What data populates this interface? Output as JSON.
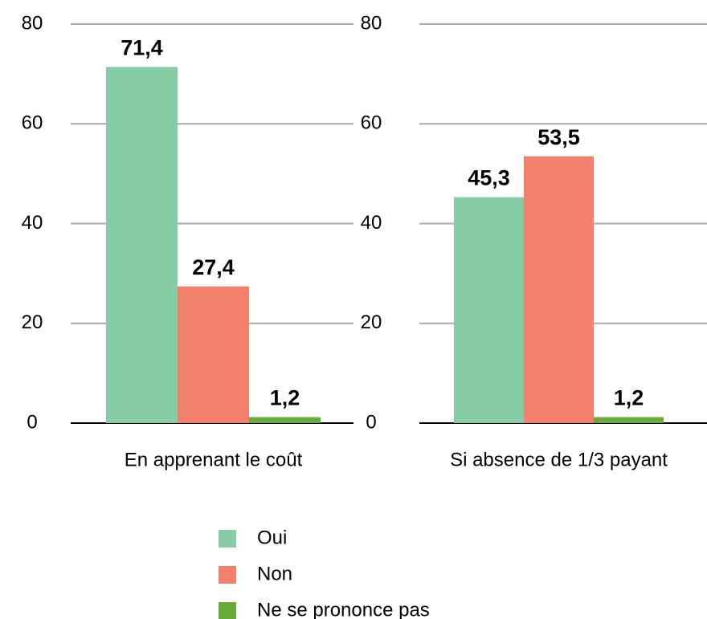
{
  "chart_data": [
    {
      "type": "bar",
      "categories": [
        "En apprenant le coût"
      ],
      "series": [
        {
          "values": [
            71.4
          ],
          "value_labels": [
            "71,4"
          ]
        },
        {
          "values": [
            27.4
          ],
          "value_labels": [
            "27,4"
          ]
        },
        {
          "values": [
            1.2
          ],
          "value_labels": [
            "1,2"
          ]
        }
      ],
      "ylim": [
        0,
        80
      ],
      "yticks": [
        0,
        20,
        40,
        60,
        80
      ],
      "grid": true
    },
    {
      "type": "bar",
      "categories": [
        "Si absence de 1/3 payant"
      ],
      "series": [
        {
          "values": [
            45.3
          ],
          "value_labels": [
            "45,3"
          ]
        },
        {
          "values": [
            53.5
          ],
          "value_labels": [
            "53,5"
          ]
        },
        {
          "values": [
            1.2
          ],
          "value_labels": [
            "1,2"
          ]
        }
      ],
      "ylim": [
        0,
        80
      ],
      "yticks": [
        0,
        20,
        40,
        60,
        80
      ],
      "grid": true
    }
  ],
  "legend": {
    "series": [
      {
        "name": "Oui",
        "color": "#86cca4"
      },
      {
        "name": "Non",
        "color": "#f2806a"
      },
      {
        "name": "Ne se prononce pas",
        "color": "#6aaa3c"
      }
    ]
  }
}
